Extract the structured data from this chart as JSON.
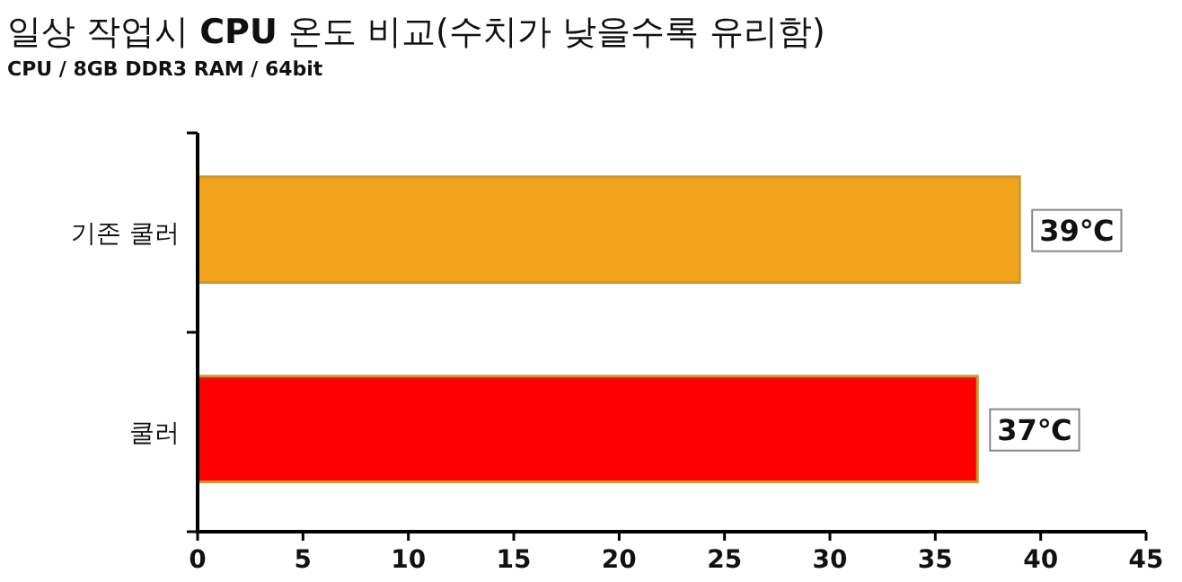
{
  "chart_data": {
    "type": "bar",
    "orientation": "horizontal",
    "title": "일상 작업시 **CPU** 온도 비교(수치가 낮을수록 유리함)",
    "subtitle": "CPU / 8GB DDR3 RAM / 64bit",
    "categories": [
      "기존 쿨러",
      "쿨러"
    ],
    "values": [
      39,
      37
    ],
    "colors": [
      "#f2a51c",
      "#ff0000"
    ],
    "value_labels": [
      "39℃",
      "37℃"
    ],
    "xlim": [
      0,
      45
    ],
    "xticks": [
      0,
      5,
      10,
      15,
      20,
      25,
      30,
      35,
      40,
      45
    ]
  }
}
